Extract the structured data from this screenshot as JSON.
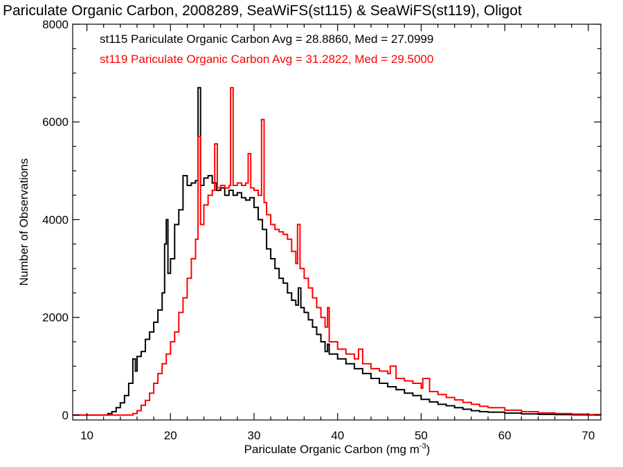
{
  "chart_data": {
    "type": "line",
    "title": "Pariculate Organic Carbon, 2008289, SeaWiFS(st115) & SeaWiFS(st119), Oligot",
    "xlabel": "Pariculate Organic Carbon (mg m",
    "xlabel_sup": "-3",
    "xlabel_suffix": ")",
    "ylabel": "Number of Observations",
    "xlim": [
      8.3,
      71.5
    ],
    "ylim": [
      -100,
      8000
    ],
    "xticks": [
      10,
      20,
      30,
      40,
      50,
      60,
      70
    ],
    "yticks": [
      0,
      2000,
      4000,
      6000,
      8000
    ],
    "legend": [
      {
        "text": "st115 Pariculate Organic Carbon Avg = 28.8860, Med = 27.0999",
        "color": "#000000"
      },
      {
        "text": "st119 Pariculate Organic Carbon Avg = 31.2822, Med = 29.5000",
        "color": "#ff0000"
      }
    ],
    "series": [
      {
        "name": "st115",
        "color": "#000000",
        "points": [
          [
            8.3,
            0
          ],
          [
            12.0,
            0
          ],
          [
            12.5,
            30
          ],
          [
            13.0,
            70
          ],
          [
            13.5,
            150
          ],
          [
            14.0,
            250
          ],
          [
            14.5,
            400
          ],
          [
            15.0,
            650
          ],
          [
            15.5,
            1150
          ],
          [
            15.8,
            900
          ],
          [
            16.0,
            1200
          ],
          [
            16.5,
            1300
          ],
          [
            17.0,
            1550
          ],
          [
            17.5,
            1700
          ],
          [
            18.0,
            1900
          ],
          [
            18.5,
            2150
          ],
          [
            19.0,
            2500
          ],
          [
            19.3,
            3500
          ],
          [
            19.5,
            4000
          ],
          [
            19.7,
            2900
          ],
          [
            20.0,
            3200
          ],
          [
            20.5,
            3900
          ],
          [
            21.0,
            4200
          ],
          [
            21.5,
            4900
          ],
          [
            22.0,
            4700
          ],
          [
            22.5,
            4750
          ],
          [
            23.0,
            4800
          ],
          [
            23.3,
            6700
          ],
          [
            23.6,
            4700
          ],
          [
            24.0,
            4850
          ],
          [
            24.5,
            4900
          ],
          [
            25.0,
            4750
          ],
          [
            25.5,
            4600
          ],
          [
            26.0,
            4650
          ],
          [
            26.5,
            4500
          ],
          [
            27.0,
            4600
          ],
          [
            27.5,
            4500
          ],
          [
            28.0,
            4550
          ],
          [
            28.5,
            4450
          ],
          [
            29.0,
            4400
          ],
          [
            29.5,
            4450
          ],
          [
            30.0,
            4250
          ],
          [
            30.5,
            4000
          ],
          [
            31.0,
            3800
          ],
          [
            31.5,
            3400
          ],
          [
            32.0,
            3200
          ],
          [
            32.5,
            3000
          ],
          [
            33.0,
            2800
          ],
          [
            33.5,
            2700
          ],
          [
            34.0,
            2500
          ],
          [
            34.5,
            2350
          ],
          [
            35.0,
            2250
          ],
          [
            35.3,
            2600
          ],
          [
            35.6,
            2200
          ],
          [
            36.0,
            2100
          ],
          [
            36.5,
            1950
          ],
          [
            37.0,
            1800
          ],
          [
            37.5,
            1650
          ],
          [
            38.0,
            1500
          ],
          [
            38.5,
            1300
          ],
          [
            38.8,
            1450
          ],
          [
            39.0,
            1250
          ],
          [
            40.0,
            1150
          ],
          [
            41.0,
            1050
          ],
          [
            42.0,
            950
          ],
          [
            43.0,
            850
          ],
          [
            44.0,
            750
          ],
          [
            45.0,
            650
          ],
          [
            46.0,
            580
          ],
          [
            47.0,
            520
          ],
          [
            48.0,
            450
          ],
          [
            49.0,
            400
          ],
          [
            50.0,
            320
          ],
          [
            51.0,
            270
          ],
          [
            52.0,
            220
          ],
          [
            53.0,
            190
          ],
          [
            54.0,
            150
          ],
          [
            55.0,
            120
          ],
          [
            56.0,
            90
          ],
          [
            57.0,
            70
          ],
          [
            58.0,
            60
          ],
          [
            60.0,
            40
          ],
          [
            62.0,
            25
          ],
          [
            64.0,
            15
          ],
          [
            66.0,
            10
          ],
          [
            68.0,
            5
          ],
          [
            70.0,
            2
          ],
          [
            71.5,
            0
          ]
        ]
      },
      {
        "name": "st119",
        "color": "#ff0000",
        "points": [
          [
            8.3,
            0
          ],
          [
            15.0,
            0
          ],
          [
            15.5,
            30
          ],
          [
            16.0,
            90
          ],
          [
            16.5,
            200
          ],
          [
            17.0,
            300
          ],
          [
            17.5,
            450
          ],
          [
            18.0,
            650
          ],
          [
            18.5,
            850
          ],
          [
            19.0,
            1050
          ],
          [
            19.5,
            1250
          ],
          [
            20.0,
            1500
          ],
          [
            20.5,
            1700
          ],
          [
            21.0,
            2100
          ],
          [
            21.5,
            2400
          ],
          [
            22.0,
            2800
          ],
          [
            22.5,
            3200
          ],
          [
            23.0,
            3600
          ],
          [
            23.3,
            5700
          ],
          [
            23.6,
            3900
          ],
          [
            24.0,
            4300
          ],
          [
            24.5,
            4500
          ],
          [
            25.0,
            4600
          ],
          [
            25.3,
            5550
          ],
          [
            25.6,
            4650
          ],
          [
            26.0,
            4700
          ],
          [
            26.5,
            4650
          ],
          [
            27.0,
            4700
          ],
          [
            27.2,
            6700
          ],
          [
            27.5,
            4700
          ],
          [
            28.0,
            4750
          ],
          [
            28.5,
            4700
          ],
          [
            29.0,
            4750
          ],
          [
            29.3,
            5350
          ],
          [
            29.6,
            4650
          ],
          [
            30.0,
            4600
          ],
          [
            30.5,
            4500
          ],
          [
            30.9,
            6050
          ],
          [
            31.2,
            4350
          ],
          [
            31.5,
            4100
          ],
          [
            32.0,
            3900
          ],
          [
            32.5,
            3800
          ],
          [
            33.0,
            3750
          ],
          [
            33.5,
            3700
          ],
          [
            34.0,
            3600
          ],
          [
            34.5,
            3350
          ],
          [
            35.0,
            3100
          ],
          [
            35.2,
            3900
          ],
          [
            35.5,
            3000
          ],
          [
            36.0,
            2800
          ],
          [
            36.5,
            2600
          ],
          [
            37.0,
            2400
          ],
          [
            37.5,
            2200
          ],
          [
            38.0,
            2000
          ],
          [
            38.5,
            1800
          ],
          [
            38.8,
            2200
          ],
          [
            39.0,
            1500
          ],
          [
            40.0,
            1350
          ],
          [
            41.0,
            1250
          ],
          [
            42.0,
            1150
          ],
          [
            42.5,
            1350
          ],
          [
            43.0,
            1050
          ],
          [
            44.0,
            950
          ],
          [
            45.0,
            900
          ],
          [
            46.0,
            850
          ],
          [
            46.3,
            1000
          ],
          [
            47.0,
            750
          ],
          [
            48.0,
            700
          ],
          [
            49.0,
            650
          ],
          [
            50.0,
            550
          ],
          [
            50.2,
            750
          ],
          [
            51.0,
            480
          ],
          [
            52.0,
            420
          ],
          [
            53.0,
            360
          ],
          [
            54.0,
            310
          ],
          [
            55.0,
            260
          ],
          [
            56.0,
            220
          ],
          [
            57.0,
            180
          ],
          [
            58.0,
            150
          ],
          [
            60.0,
            100
          ],
          [
            62.0,
            70
          ],
          [
            64.0,
            45
          ],
          [
            66.0,
            30
          ],
          [
            68.0,
            20
          ],
          [
            70.0,
            10
          ],
          [
            71.5,
            5
          ]
        ]
      }
    ]
  }
}
